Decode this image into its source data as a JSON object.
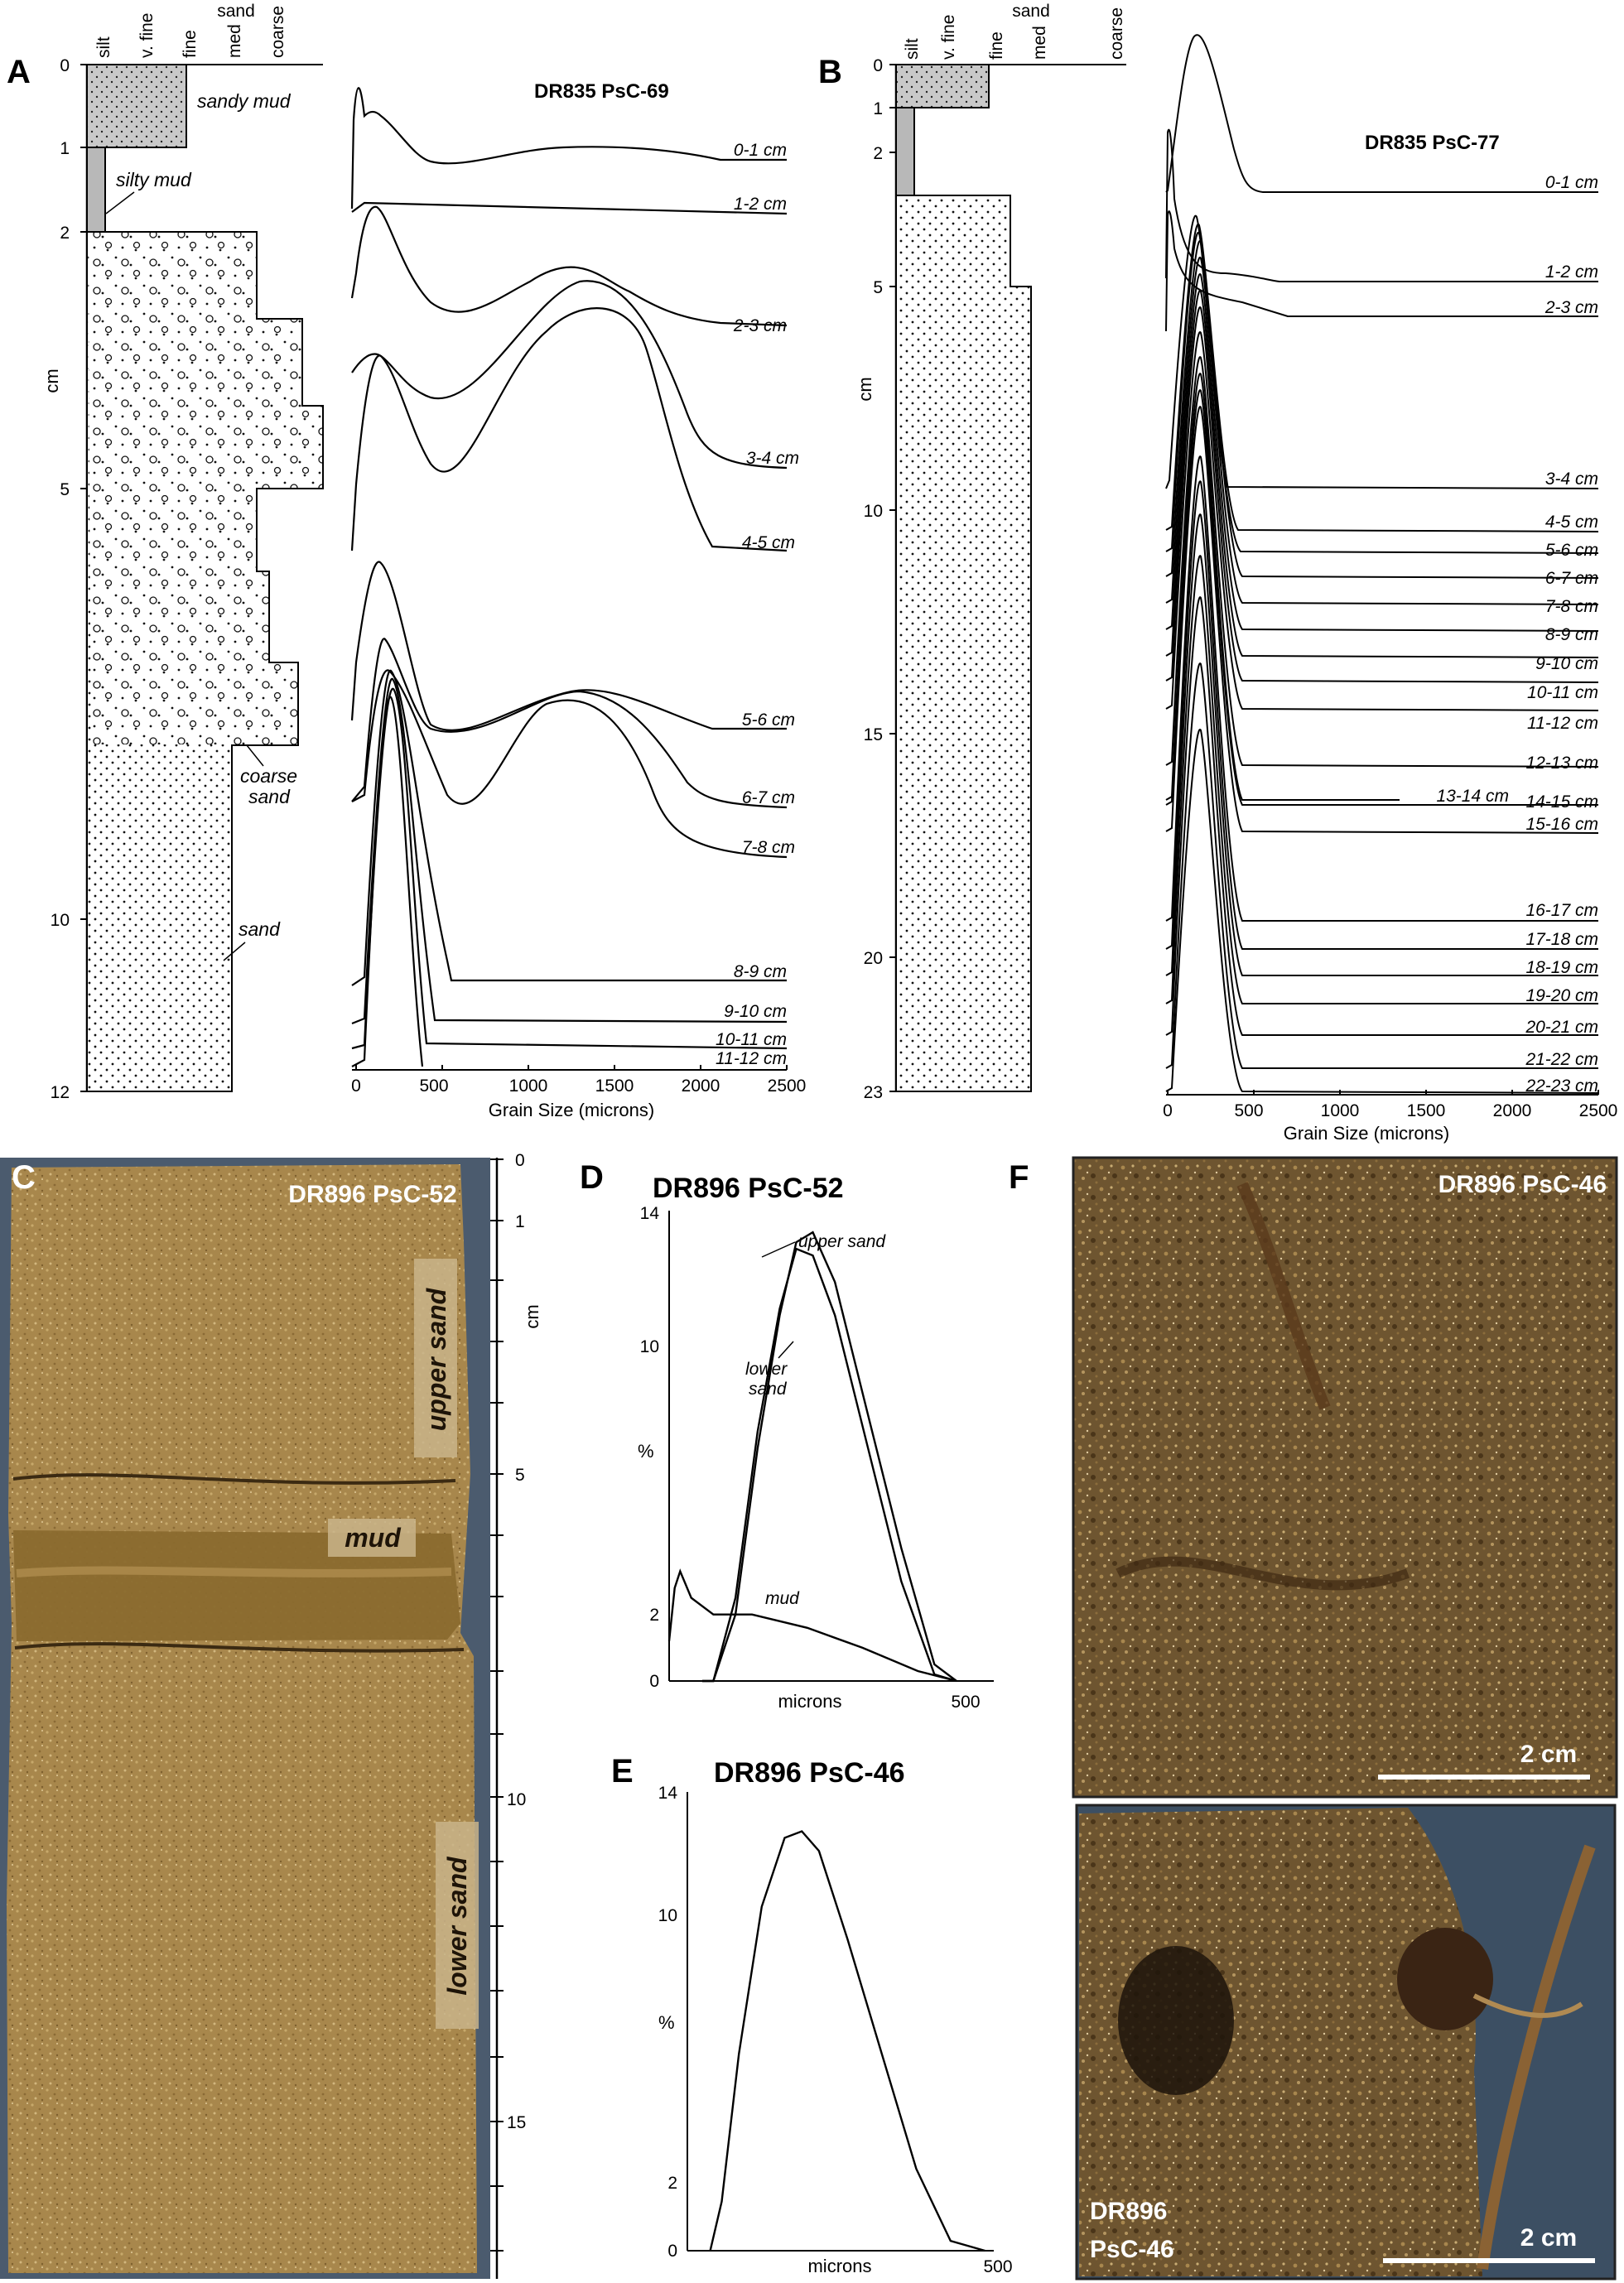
{
  "panels": {
    "A": {
      "letter": "A",
      "title": "DR835 PsC-69",
      "texture_header": [
        "silt",
        "v. fine",
        "fine",
        "med",
        "coarse"
      ],
      "texture_group": "sand",
      "depth_unit": "cm",
      "depth_ticks": [
        "0",
        "1",
        "2",
        "5",
        "10",
        "12"
      ],
      "layers": [
        "sandy mud",
        "silty mud",
        "coarse sand",
        "sand"
      ],
      "grain_size_label": "Grain Size (microns)",
      "x_ticks": [
        "0",
        "500",
        "1000",
        "1500",
        "2000",
        "2500"
      ],
      "curve_labels": [
        "0-1 cm",
        "1-2 cm",
        "2-3 cm",
        "3-4 cm",
        "4-5 cm",
        "5-6 cm",
        "6-7 cm",
        "7-8 cm",
        "8-9 cm",
        "9-10 cm",
        "10-11 cm",
        "11-12 cm"
      ]
    },
    "B": {
      "letter": "B",
      "title": "DR835 PsC-77",
      "texture_header": [
        "silt",
        "v. fine",
        "fine",
        "med",
        "coarse"
      ],
      "texture_group": "sand",
      "depth_unit": "cm",
      "depth_ticks": [
        "0",
        "1",
        "2",
        "5",
        "10",
        "15",
        "20",
        "23"
      ],
      "grain_size_label": "Grain Size (microns)",
      "x_ticks": [
        "0",
        "500",
        "1000",
        "1500",
        "2000",
        "2500"
      ],
      "curve_labels": [
        "0-1 cm",
        "1-2 cm",
        "2-3 cm",
        "3-4 cm",
        "4-5 cm",
        "5-6 cm",
        "6-7 cm",
        "7-8 cm",
        "8-9 cm",
        "9-10 cm",
        "10-11 cm",
        "11-12 cm",
        "12-13 cm",
        "13-14 cm",
        "14-15 cm",
        "15-16 cm",
        "16-17 cm",
        "17-18 cm",
        "18-19 cm",
        "19-20 cm",
        "20-21 cm",
        "21-22 cm",
        "22-23 cm"
      ]
    },
    "C": {
      "letter": "C",
      "title": "DR896 PsC-52",
      "depth_unit": "cm",
      "depth_ticks": [
        "0",
        "1",
        "5",
        "10",
        "15"
      ],
      "labels": [
        "upper sand",
        "mud",
        "lower sand"
      ]
    },
    "D": {
      "letter": "D",
      "title": "DR896 PsC-52",
      "y_ticks": [
        "14",
        "10",
        "2",
        "0"
      ],
      "ylabel": "%",
      "xlabel": "microns",
      "x_tick": "500",
      "series_labels": [
        "upper sand",
        "lower sand",
        "mud"
      ]
    },
    "E": {
      "letter": "E",
      "title": "DR896 PsC-46",
      "y_ticks": [
        "14",
        "10",
        "2",
        "0"
      ],
      "ylabel": "%",
      "xlabel": "microns",
      "x_tick": "500"
    },
    "F": {
      "letter": "F",
      "title_top": "DR896 PsC-46",
      "title_bottom_line1": "DR896",
      "title_bottom_line2": "PsC-46",
      "scale_label": "2 cm"
    }
  },
  "chart_data": [
    {
      "type": "line",
      "title": "DR896 PsC-52",
      "xlabel": "microns",
      "ylabel": "%",
      "ylim": [
        0,
        14
      ],
      "xlim": [
        0,
        550
      ],
      "series": [
        {
          "name": "upper sand",
          "x": [
            60,
            80,
            120,
            160,
            200,
            230,
            260,
            300,
            360,
            420,
            480,
            520
          ],
          "values": [
            0,
            0,
            2,
            7,
            11,
            13.2,
            13.5,
            12,
            8,
            4,
            0.5,
            0
          ]
        },
        {
          "name": "lower sand",
          "x": [
            60,
            80,
            120,
            160,
            200,
            230,
            260,
            300,
            360,
            420,
            480,
            520
          ],
          "values": [
            0,
            0,
            2.5,
            7.5,
            11.2,
            13.0,
            12.8,
            11,
            7,
            3,
            0.2,
            0
          ]
        },
        {
          "name": "mud",
          "x": [
            0,
            10,
            20,
            40,
            80,
            150,
            250,
            350,
            450,
            520
          ],
          "values": [
            1.2,
            2.8,
            3.3,
            2.5,
            2.0,
            2.0,
            1.6,
            1.0,
            0.3,
            0
          ]
        }
      ]
    },
    {
      "type": "line",
      "title": "DR896 PsC-46",
      "xlabel": "microns",
      "ylabel": "%",
      "ylim": [
        0,
        14
      ],
      "xlim": [
        0,
        550
      ],
      "series": [
        {
          "x": [
            40,
            60,
            90,
            130,
            170,
            200,
            230,
            280,
            340,
            400,
            460,
            520
          ],
          "values": [
            0,
            1.5,
            6,
            10.5,
            12.6,
            12.8,
            12.2,
            9.5,
            6,
            2.5,
            0.3,
            0
          ]
        }
      ]
    }
  ]
}
